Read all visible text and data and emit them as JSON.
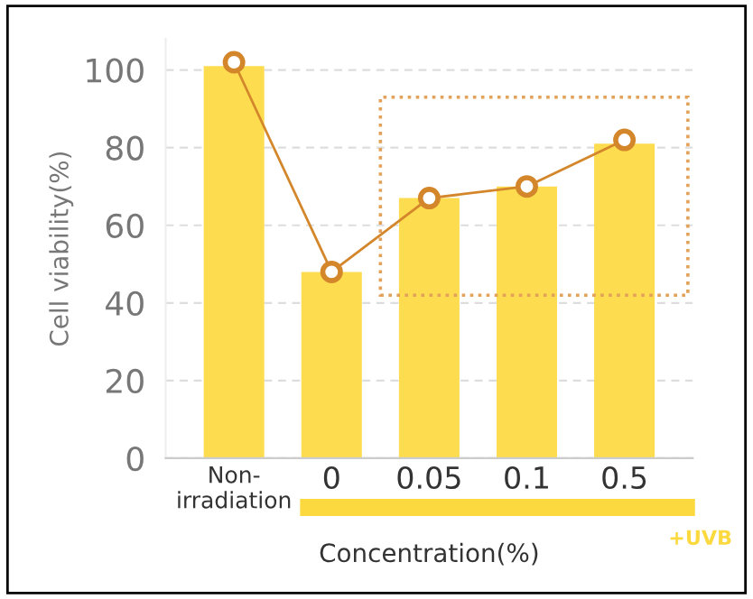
{
  "chart_data": {
    "type": "bar",
    "ylabel": "Cell viability(%)",
    "xlabel": "Concentration(%)",
    "categories": [
      "Non-\nirradiation",
      "0",
      "0.05",
      "0.1",
      "0.5"
    ],
    "series": [
      {
        "color": "#fddc4f",
        "values": [
          101,
          48,
          67,
          70,
          81
        ]
      },
      {
        "type": "line",
        "color": "#d4862b",
        "values": [
          102,
          48,
          67,
          70,
          82
        ],
        "marker": "circle"
      }
    ],
    "annotations": [
      "+UVB"
    ],
    "ylim": [
      0,
      108
    ],
    "yticks": [
      0,
      20,
      40,
      60,
      80,
      100
    ],
    "grid": "y"
  }
}
